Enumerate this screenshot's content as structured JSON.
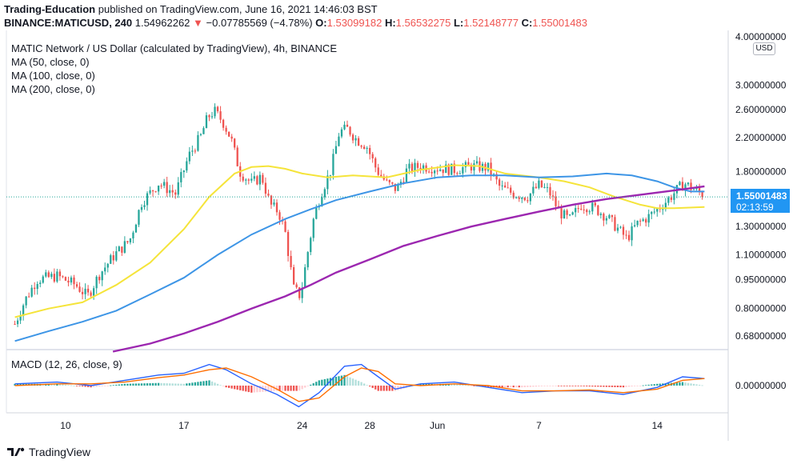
{
  "header": {
    "publisher": "Trading-Education",
    "published_text": "published on TradingView.com, June 16, 2021 14:46:03 BST",
    "symbol": "BINANCE:MATICUSD, 240",
    "last": "1.54962262",
    "change": "−0.07785569 (−4.78%)",
    "o_label": "O:",
    "o": "1.53099182",
    "h_label": "H:",
    "h": "1.56532275",
    "l_label": "L:",
    "l": "1.52148777",
    "c_label": "C:",
    "c": "1.55001483"
  },
  "legend": {
    "title": "MATIC Network / US Dollar (calculated by TradingView), 4h, BINANCE",
    "ma50": "MA (50, close, 0)",
    "ma100": "MA (100, close, 0)",
    "ma200": "MA (200, close, 0)",
    "macd": "MACD (12, 26, close, 9)"
  },
  "price_scale": {
    "currency": "USD",
    "price_label": "1.55001483",
    "countdown": "02:13:59"
  },
  "footer": {
    "brand": "TradingView"
  },
  "colors": {
    "up": "#26a69a",
    "down": "#ef5350",
    "ma50": "#f5e43a",
    "ma100": "#3d95e6",
    "ma200": "#9c27b0",
    "macd": "#2962ff",
    "signal": "#ff6d00",
    "price_line": "#26a69a",
    "accent": "#2196f3"
  },
  "chart_data": {
    "type": "candlestick",
    "title": "MATIC Network / US Dollar (calculated by TradingView), 4h, BINANCE",
    "y_scale": "log",
    "y_ticks": [
      "4.00000000",
      "3.00000000",
      "2.60000000",
      "2.20000000",
      "1.80000000",
      "1.30000000",
      "1.10000000",
      "0.95000000",
      "0.80000000",
      "0.68000000"
    ],
    "x_ticks": [
      "10",
      "17",
      "24",
      "28",
      "Jun",
      "7",
      "14"
    ],
    "x_tick_days": [
      10,
      17,
      24,
      28,
      32,
      38,
      45
    ],
    "ylim": [
      0.62,
      4.0
    ],
    "last_price": 1.55001483,
    "price_path": [
      {
        "day": 7.0,
        "price": 0.73
      },
      {
        "day": 7.6,
        "price": 0.84
      },
      {
        "day": 8.3,
        "price": 0.95
      },
      {
        "day": 9.5,
        "price": 0.97
      },
      {
        "day": 10.6,
        "price": 0.92
      },
      {
        "day": 11.3,
        "price": 0.86
      },
      {
        "day": 12.0,
        "price": 0.98
      },
      {
        "day": 12.9,
        "price": 1.1
      },
      {
        "day": 13.8,
        "price": 1.2
      },
      {
        "day": 14.5,
        "price": 1.5
      },
      {
        "day": 15.5,
        "price": 1.68
      },
      {
        "day": 16.5,
        "price": 1.58
      },
      {
        "day": 17.3,
        "price": 1.98
      },
      {
        "day": 18.0,
        "price": 2.22
      },
      {
        "day": 18.4,
        "price": 2.48
      },
      {
        "day": 18.8,
        "price": 2.58
      },
      {
        "day": 19.3,
        "price": 2.42
      },
      {
        "day": 19.8,
        "price": 2.18
      },
      {
        "day": 20.3,
        "price": 1.8
      },
      {
        "day": 21.0,
        "price": 1.68
      },
      {
        "day": 21.6,
        "price": 1.75
      },
      {
        "day": 22.1,
        "price": 1.48
      },
      {
        "day": 22.6,
        "price": 1.42
      },
      {
        "day": 23.0,
        "price": 1.25
      },
      {
        "day": 23.5,
        "price": 0.9
      },
      {
        "day": 23.9,
        "price": 0.86
      },
      {
        "day": 24.3,
        "price": 1.1
      },
      {
        "day": 24.7,
        "price": 1.38
      },
      {
        "day": 25.2,
        "price": 1.62
      },
      {
        "day": 25.7,
        "price": 1.82
      },
      {
        "day": 26.2,
        "price": 2.28
      },
      {
        "day": 26.7,
        "price": 2.32
      },
      {
        "day": 27.2,
        "price": 2.18
      },
      {
        "day": 27.8,
        "price": 2.1
      },
      {
        "day": 28.4,
        "price": 1.82
      },
      {
        "day": 29.0,
        "price": 1.68
      },
      {
        "day": 29.6,
        "price": 1.62
      },
      {
        "day": 30.2,
        "price": 1.82
      },
      {
        "day": 31.0,
        "price": 1.86
      },
      {
        "day": 32.0,
        "price": 1.84
      },
      {
        "day": 33.0,
        "price": 1.82
      },
      {
        "day": 34.0,
        "price": 1.86
      },
      {
        "day": 35.0,
        "price": 1.84
      },
      {
        "day": 35.7,
        "price": 1.64
      },
      {
        "day": 36.5,
        "price": 1.58
      },
      {
        "day": 37.3,
        "price": 1.55
      },
      {
        "day": 38.0,
        "price": 1.66
      },
      {
        "day": 38.6,
        "price": 1.6
      },
      {
        "day": 39.2,
        "price": 1.42
      },
      {
        "day": 39.8,
        "price": 1.35
      },
      {
        "day": 40.5,
        "price": 1.48
      },
      {
        "day": 41.3,
        "price": 1.45
      },
      {
        "day": 42.0,
        "price": 1.38
      },
      {
        "day": 42.7,
        "price": 1.28
      },
      {
        "day": 43.2,
        "price": 1.21
      },
      {
        "day": 43.8,
        "price": 1.32
      },
      {
        "day": 44.5,
        "price": 1.38
      },
      {
        "day": 45.0,
        "price": 1.44
      },
      {
        "day": 45.6,
        "price": 1.52
      },
      {
        "day": 46.2,
        "price": 1.62
      },
      {
        "day": 46.6,
        "price": 1.68
      },
      {
        "day": 47.2,
        "price": 1.62
      },
      {
        "day": 47.8,
        "price": 1.56
      }
    ],
    "series": [
      {
        "name": "MA (50, close, 0)",
        "points": [
          [
            7.0,
            0.76
          ],
          [
            9.0,
            0.8
          ],
          [
            11.0,
            0.83
          ],
          [
            13.0,
            0.92
          ],
          [
            15.0,
            1.05
          ],
          [
            17.0,
            1.28
          ],
          [
            18.5,
            1.55
          ],
          [
            20.0,
            1.78
          ],
          [
            21.0,
            1.85
          ],
          [
            22.0,
            1.86
          ],
          [
            23.0,
            1.83
          ],
          [
            24.0,
            1.78
          ],
          [
            25.5,
            1.74
          ],
          [
            27.0,
            1.76
          ],
          [
            29.0,
            1.74
          ],
          [
            31.0,
            1.82
          ],
          [
            33.0,
            1.87
          ],
          [
            34.5,
            1.86
          ],
          [
            36.0,
            1.78
          ],
          [
            38.0,
            1.74
          ],
          [
            39.5,
            1.7
          ],
          [
            41.0,
            1.64
          ],
          [
            42.5,
            1.55
          ],
          [
            44.0,
            1.48
          ],
          [
            45.0,
            1.45
          ],
          [
            46.0,
            1.45
          ],
          [
            47.8,
            1.46
          ]
        ]
      },
      {
        "name": "MA (100, close, 0)",
        "points": [
          [
            7.0,
            0.66
          ],
          [
            9.0,
            0.7
          ],
          [
            11.0,
            0.74
          ],
          [
            13.0,
            0.79
          ],
          [
            15.0,
            0.87
          ],
          [
            17.0,
            0.96
          ],
          [
            19.0,
            1.1
          ],
          [
            21.0,
            1.24
          ],
          [
            23.0,
            1.36
          ],
          [
            24.5,
            1.44
          ],
          [
            26.0,
            1.52
          ],
          [
            28.0,
            1.6
          ],
          [
            30.0,
            1.68
          ],
          [
            32.0,
            1.74
          ],
          [
            34.0,
            1.76
          ],
          [
            36.0,
            1.76
          ],
          [
            38.0,
            1.74
          ],
          [
            40.0,
            1.75
          ],
          [
            42.0,
            1.78
          ],
          [
            43.5,
            1.76
          ],
          [
            45.0,
            1.7
          ],
          [
            46.0,
            1.64
          ],
          [
            47.0,
            1.6
          ],
          [
            47.8,
            1.6
          ]
        ]
      },
      {
        "name": "MA (200, close, 0)",
        "points": [
          [
            12.8,
            0.62
          ],
          [
            15.0,
            0.65
          ],
          [
            17.0,
            0.69
          ],
          [
            19.0,
            0.74
          ],
          [
            21.0,
            0.8
          ],
          [
            23.0,
            0.86
          ],
          [
            24.5,
            0.92
          ],
          [
            26.0,
            0.99
          ],
          [
            28.0,
            1.07
          ],
          [
            30.0,
            1.16
          ],
          [
            32.0,
            1.23
          ],
          [
            34.0,
            1.3
          ],
          [
            36.0,
            1.36
          ],
          [
            38.0,
            1.42
          ],
          [
            40.0,
            1.48
          ],
          [
            42.0,
            1.53
          ],
          [
            44.0,
            1.57
          ],
          [
            46.0,
            1.61
          ],
          [
            47.8,
            1.65
          ]
        ]
      }
    ],
    "macd": {
      "name": "MACD (12, 26, close, 9)",
      "y_ticks": [
        "0.00000000"
      ],
      "macd_line": [
        [
          7.0,
          0.02
        ],
        [
          9.5,
          0.04
        ],
        [
          11.5,
          0.0
        ],
        [
          13.5,
          0.06
        ],
        [
          15.5,
          0.12
        ],
        [
          17.0,
          0.14
        ],
        [
          18.5,
          0.24
        ],
        [
          19.5,
          0.18
        ],
        [
          21.0,
          0.02
        ],
        [
          22.5,
          -0.1
        ],
        [
          23.8,
          -0.24
        ],
        [
          25.0,
          -0.08
        ],
        [
          26.5,
          0.22
        ],
        [
          27.5,
          0.24
        ],
        [
          28.5,
          0.1
        ],
        [
          29.5,
          -0.04
        ],
        [
          31.0,
          0.02
        ],
        [
          33.0,
          0.04
        ],
        [
          35.0,
          -0.02
        ],
        [
          37.0,
          -0.08
        ],
        [
          39.0,
          -0.06
        ],
        [
          41.0,
          -0.06
        ],
        [
          43.0,
          -0.1
        ],
        [
          45.0,
          -0.02
        ],
        [
          46.5,
          0.1
        ],
        [
          47.8,
          0.08
        ]
      ],
      "signal_line": [
        [
          7.0,
          0.0
        ],
        [
          9.5,
          0.02
        ],
        [
          11.5,
          0.02
        ],
        [
          13.5,
          0.04
        ],
        [
          15.5,
          0.09
        ],
        [
          17.0,
          0.12
        ],
        [
          18.5,
          0.18
        ],
        [
          19.5,
          0.2
        ],
        [
          21.0,
          0.1
        ],
        [
          22.5,
          -0.04
        ],
        [
          23.8,
          -0.18
        ],
        [
          25.0,
          -0.14
        ],
        [
          26.5,
          0.1
        ],
        [
          27.5,
          0.2
        ],
        [
          28.5,
          0.16
        ],
        [
          29.5,
          0.02
        ],
        [
          31.0,
          0.0
        ],
        [
          33.0,
          0.02
        ],
        [
          35.0,
          0.0
        ],
        [
          37.0,
          -0.06
        ],
        [
          39.0,
          -0.06
        ],
        [
          41.0,
          -0.05
        ],
        [
          43.0,
          -0.08
        ],
        [
          45.0,
          -0.04
        ],
        [
          46.5,
          0.06
        ],
        [
          47.8,
          0.08
        ]
      ]
    }
  }
}
